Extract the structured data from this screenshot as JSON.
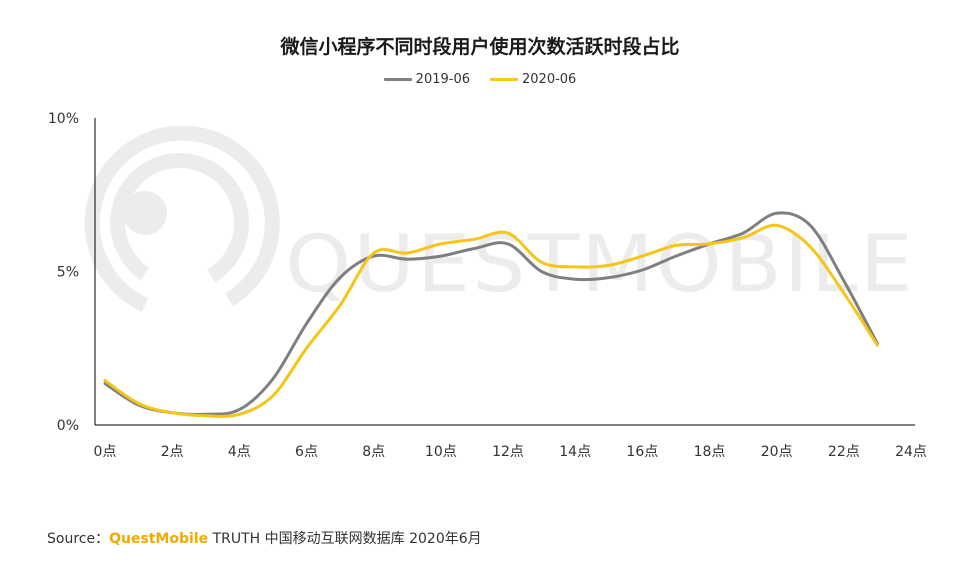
{
  "chart_data": {
    "type": "line",
    "title": "微信小程序不同时段用户使用次数活跃时段占比",
    "x": [
      0,
      1,
      2,
      3,
      4,
      5,
      6,
      7,
      8,
      9,
      10,
      11,
      12,
      13,
      14,
      15,
      16,
      17,
      18,
      19,
      20,
      21,
      22,
      23
    ],
    "x_tick_labels": [
      "0点",
      "2点",
      "4点",
      "6点",
      "8点",
      "10点",
      "12点",
      "14点",
      "16点",
      "18点",
      "20点",
      "22点",
      "24点"
    ],
    "y_tick_labels": [
      "10%",
      "5%",
      "0%"
    ],
    "ylim": [
      0,
      10
    ],
    "y_unit": "%",
    "grid": false,
    "legend_position": "top-center",
    "series": [
      {
        "name": "2019-06",
        "color": "#7f7f7f",
        "values": [
          1.35,
          0.65,
          0.4,
          0.35,
          0.5,
          1.5,
          3.3,
          4.8,
          5.5,
          5.4,
          5.5,
          5.75,
          5.9,
          5.0,
          4.75,
          4.8,
          5.05,
          5.5,
          5.9,
          6.25,
          6.9,
          6.5,
          4.7,
          2.65
        ]
      },
      {
        "name": "2020-06",
        "color": "#f5c518",
        "values": [
          1.45,
          0.7,
          0.4,
          0.3,
          0.35,
          0.95,
          2.5,
          3.9,
          5.6,
          5.6,
          5.9,
          6.05,
          6.25,
          5.3,
          5.15,
          5.2,
          5.5,
          5.85,
          5.9,
          6.1,
          6.5,
          5.8,
          4.3,
          2.6
        ]
      }
    ]
  },
  "source": {
    "prefix": "Source：",
    "brand": "QuestMobile",
    "suffix": " TRUTH 中国移动互联网数据库 2020年6月"
  },
  "watermark": {
    "text": "QUESTMOBILE",
    "icon": "questmobile-logo-icon",
    "color": "#ececec"
  }
}
